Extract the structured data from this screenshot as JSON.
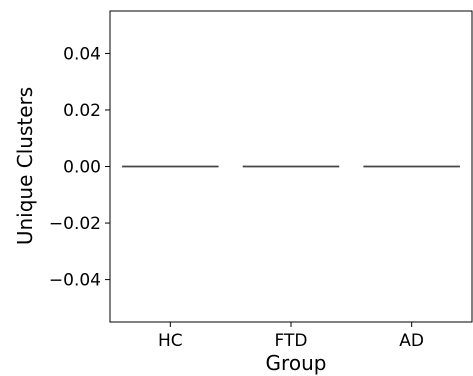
{
  "chart_data": {
    "type": "box",
    "title": "",
    "xlabel": "Group",
    "ylabel": "Unique Clusters",
    "categories": [
      "HC",
      "FTD",
      "AD"
    ],
    "values": [
      0.0,
      0.0,
      0.0
    ],
    "ylim": [
      -0.055,
      0.055
    ],
    "yticks": [
      -0.04,
      -0.02,
      0.0,
      0.02,
      0.04
    ],
    "ytick_labels": [
      "−0.04",
      "−0.02",
      "0.00",
      "0.02",
      "0.04"
    ],
    "grid": false,
    "legend": "none",
    "colors": {
      "axis": "#000000",
      "median": "#444444"
    }
  }
}
